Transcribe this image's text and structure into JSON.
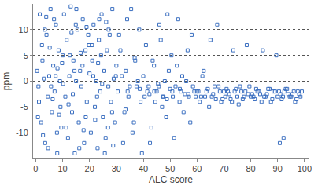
{
  "chart_data": {
    "type": "scatter",
    "x_label": "ALC score",
    "y_label": "ppm",
    "color": "#3b6fc0",
    "marker": "square-open",
    "grid": true,
    "xlim": [
      -1,
      101.5
    ],
    "xticks": [
      0,
      10,
      20,
      30,
      40,
      50,
      60,
      70,
      80,
      90,
      100
    ],
    "ylim": [
      -15,
      15
    ],
    "yticks": [
      -10,
      -5,
      0,
      5,
      10
    ],
    "x": [
      0.5,
      1,
      1.5,
      2,
      2.5,
      3,
      3.5,
      4,
      4.5,
      5,
      5.5,
      6,
      6.5,
      7,
      7.5,
      8,
      8.5,
      9,
      9.5,
      10,
      1.2,
      2.3,
      3.4,
      4.6,
      5.7,
      6.8,
      7.9,
      8.1,
      9.2,
      0.8,
      10.5,
      11,
      11.5,
      12,
      12.5,
      13,
      13.5,
      14,
      14.5,
      15,
      15.5,
      16,
      16.5,
      17,
      17.5,
      18,
      18.5,
      19,
      19.5,
      20,
      11.3,
      12.7,
      13.8,
      14.9,
      16.2,
      17.4,
      18.6,
      19.8,
      10.2,
      15.1,
      20.5,
      21,
      21.5,
      22,
      22.5,
      23,
      23.5,
      24,
      24.5,
      25,
      25.5,
      26,
      26.5,
      27,
      27.5,
      28,
      28.5,
      29,
      29.5,
      30,
      21.4,
      22.8,
      24.3,
      25.7,
      27.1,
      28.4,
      29.8,
      23.6,
      26.9,
      20.9,
      30.5,
      31,
      32,
      33,
      34,
      35,
      36,
      37,
      38,
      39,
      31.5,
      32.5,
      33.5,
      34.5,
      35.5,
      36.5,
      37.5,
      38.5,
      39.5,
      40,
      40.5,
      41,
      42,
      43,
      44,
      45,
      46,
      47,
      48,
      49,
      41.5,
      42.5,
      43.5,
      44.5,
      45.5,
      46.5,
      47.5,
      48.5,
      49.5,
      50,
      50.5,
      51,
      52,
      53,
      54,
      55,
      56,
      57,
      58,
      59,
      51.5,
      52.5,
      53.5,
      54.5,
      55.5,
      56.5,
      57.5,
      58.5,
      59.5,
      60,
      60.5,
      61,
      62,
      63,
      64,
      65,
      66,
      67,
      68,
      69,
      61.5,
      62.5,
      63.5,
      64.5,
      65.5,
      66.5,
      67.5,
      68.5,
      69.5,
      70,
      70.5,
      71,
      72,
      73,
      74,
      75,
      76,
      77,
      78,
      79,
      71.5,
      72.5,
      73.5,
      74.5,
      75.5,
      76.5,
      77.5,
      78.5,
      79.5,
      80,
      80.5,
      81,
      82,
      83,
      84,
      85,
      86,
      87,
      88,
      89,
      81.5,
      82.5,
      83.5,
      84.5,
      85.5,
      86.5,
      87.5,
      88.5,
      89.5,
      90,
      90.5,
      91,
      92,
      93,
      94,
      95,
      96,
      97,
      98,
      99,
      91.5,
      92.5,
      93.5,
      94.5,
      95.5,
      96.5,
      97.5,
      98.5,
      92.2,
      90.8,
      2.7,
      3.9,
      5.2,
      6.3,
      7.4,
      8.7,
      9.8,
      12.2,
      13.3,
      14.4,
      16.7,
      17.8,
      18.9,
      22.1,
      23.2,
      24.7,
      26.2,
      28.8,
      33.4,
      36.8,
      34.2,
      38.7,
      42.3,
      45.8,
      47.2,
      50.8,
      53.6,
      56.8,
      44.1,
      48.8
    ],
    "values": [
      2,
      -1,
      13,
      -8,
      4,
      0.5,
      -12,
      9,
      -3,
      1,
      14,
      -6,
      3,
      -2,
      11,
      -14,
      6,
      0,
      -9,
      5,
      -4,
      7,
      10,
      -13,
      -1,
      12,
      -10,
      2.5,
      -5,
      -7,
      13,
      -3,
      8,
      -11,
      1,
      14.5,
      -6,
      4,
      -14,
      0,
      10,
      -8,
      2,
      -1,
      12,
      -12,
      6,
      -4,
      9,
      1.5,
      -9,
      5,
      -2.5,
      11,
      -13,
      3,
      -7,
      7,
      -0.5,
      14,
      -10,
      4,
      11,
      -5,
      0,
      -13,
      8,
      -2,
      13,
      -7,
      2,
      -11,
      6,
      -1,
      9,
      -4,
      14,
      0.5,
      -8,
      3,
      1,
      -3,
      5,
      -14,
      10,
      -6,
      1,
      12,
      -9,
      7,
      -2,
      9,
      1,
      -6,
      12,
      -1,
      -10,
      4,
      0,
      -4,
      6,
      -12,
      2,
      -3,
      14,
      -8,
      -1,
      10,
      -14,
      1,
      -3,
      7,
      -1,
      -9,
      3,
      -2,
      11,
      -5,
      0,
      13,
      -2,
      -12,
      4,
      -4,
      -0.5,
      8,
      -3,
      -7,
      2,
      -1.5,
      5,
      -3,
      -1,
      12,
      -2,
      -6,
      0,
      -3,
      9,
      -2,
      -11,
      3,
      -4,
      1,
      -2.5,
      6,
      -8,
      -1,
      -3,
      -2,
      -2,
      -4,
      1,
      -3,
      -1.5,
      8,
      -2.5,
      -3.5,
      -1,
      -4,
      -3,
      2,
      -2,
      -5,
      -3,
      -1,
      11,
      -2,
      -3.5,
      -2,
      -3,
      -1.5,
      -2.5,
      -4,
      -2,
      -3,
      -1,
      -3.5,
      -2,
      -2.5,
      -2,
      -3.5,
      6,
      -1.5,
      -4.5,
      -2,
      -3,
      7,
      -1,
      -3,
      -2.5,
      -3,
      -1.5,
      -2,
      -4,
      -3,
      -2.5,
      -1.5,
      -3.5,
      -2,
      -3.5,
      -2,
      -2.5,
      6,
      -3,
      -1.5,
      -4,
      -2,
      5,
      -3,
      -2,
      -2.5,
      -3,
      -1.5,
      -2.5,
      -3,
      -2,
      -3.5,
      -2.5,
      -2,
      -3.5,
      -2,
      -1.5,
      -3,
      -2.5,
      -4,
      -2,
      -3,
      -11,
      -12,
      -10.5,
      12.5,
      6.5,
      -3.5,
      1,
      -6.5,
      3.5,
      -4.5,
      9.5,
      2,
      5.5,
      -9.5,
      10.5,
      -7.5,
      3.5,
      -0.5,
      11.5,
      -12.5,
      -5.5,
      4.5,
      -2,
      -1.5,
      -2.5,
      -1,
      -3,
      -2,
      -1.5,
      -2.5,
      -2,
      -3.5
    ]
  }
}
